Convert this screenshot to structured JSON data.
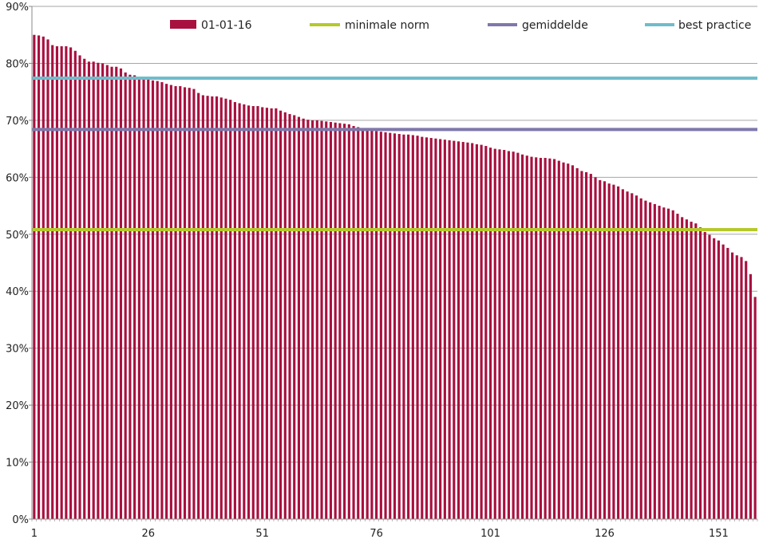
{
  "chart_data": {
    "type": "bar",
    "title": "",
    "xlabel": "",
    "ylabel": "",
    "ylim": [
      0,
      90
    ],
    "y_tick_labels": [
      "0%",
      "10%",
      "20%",
      "30%",
      "40%",
      "50%",
      "60%",
      "70%",
      "80%",
      "90%"
    ],
    "y_tick_values": [
      0,
      10,
      20,
      30,
      40,
      50,
      60,
      70,
      80,
      90
    ],
    "x_tick_labels": [
      "1",
      "26",
      "51",
      "76",
      "101",
      "126",
      "151"
    ],
    "x_tick_values": [
      1,
      26,
      51,
      76,
      101,
      126,
      151
    ],
    "grid": true,
    "legend_position": "top",
    "colors": {
      "bars": "#a8103f",
      "minimale_norm": "#b5c92b",
      "gemiddelde": "#7e78ab",
      "best_practice": "#6fbccb",
      "grid": "#a6a6a6",
      "axis": "#888888"
    },
    "bar_series": {
      "name": "01-01-16",
      "values": [
        85.0,
        84.9,
        84.7,
        84.2,
        83.2,
        83.0,
        83.0,
        83.0,
        82.8,
        82.2,
        81.4,
        80.8,
        80.3,
        80.3,
        80.1,
        80.0,
        79.7,
        79.4,
        79.4,
        79.1,
        78.4,
        78.0,
        77.9,
        77.6,
        77.5,
        77.3,
        77.0,
        76.9,
        76.7,
        76.4,
        76.2,
        76.0,
        76.0,
        75.8,
        75.7,
        75.5,
        74.8,
        74.4,
        74.3,
        74.2,
        74.2,
        74.0,
        73.8,
        73.6,
        73.2,
        73.0,
        72.8,
        72.6,
        72.5,
        72.5,
        72.3,
        72.2,
        72.1,
        72.1,
        71.7,
        71.4,
        71.1,
        70.9,
        70.6,
        70.3,
        70.1,
        70.0,
        70.0,
        69.9,
        69.8,
        69.7,
        69.6,
        69.5,
        69.4,
        69.3,
        69.0,
        68.8,
        68.6,
        68.4,
        68.2,
        68.1,
        68.0,
        67.9,
        67.8,
        67.7,
        67.6,
        67.5,
        67.5,
        67.4,
        67.3,
        67.1,
        67.0,
        66.9,
        66.8,
        66.7,
        66.6,
        66.5,
        66.4,
        66.3,
        66.2,
        66.1,
        66.0,
        65.8,
        65.7,
        65.5,
        65.2,
        65.0,
        64.9,
        64.8,
        64.6,
        64.5,
        64.3,
        64.0,
        63.8,
        63.6,
        63.5,
        63.4,
        63.4,
        63.3,
        63.2,
        62.9,
        62.6,
        62.4,
        62.1,
        61.6,
        61.1,
        60.9,
        60.6,
        60.0,
        59.5,
        59.3,
        58.9,
        58.7,
        58.4,
        57.9,
        57.5,
        57.2,
        56.8,
        56.3,
        55.9,
        55.6,
        55.3,
        55.0,
        54.7,
        54.5,
        54.2,
        53.6,
        53.0,
        52.6,
        52.2,
        51.9,
        51.2,
        50.4,
        49.9,
        49.3,
        48.9,
        48.2,
        47.6,
        46.8,
        46.3,
        46.0,
        45.3,
        43.0,
        39.0
      ]
    },
    "reference_lines": [
      {
        "name": "minimale norm",
        "value": 50.8
      },
      {
        "name": "gemiddelde",
        "value": 68.4
      },
      {
        "name": "best practice",
        "value": 77.4
      }
    ],
    "legend": {
      "bars_label": "01-01-16",
      "minimale_norm_label": "minimale norm",
      "gemiddelde_label": "gemiddelde",
      "best_practice_label": "best practice"
    }
  }
}
